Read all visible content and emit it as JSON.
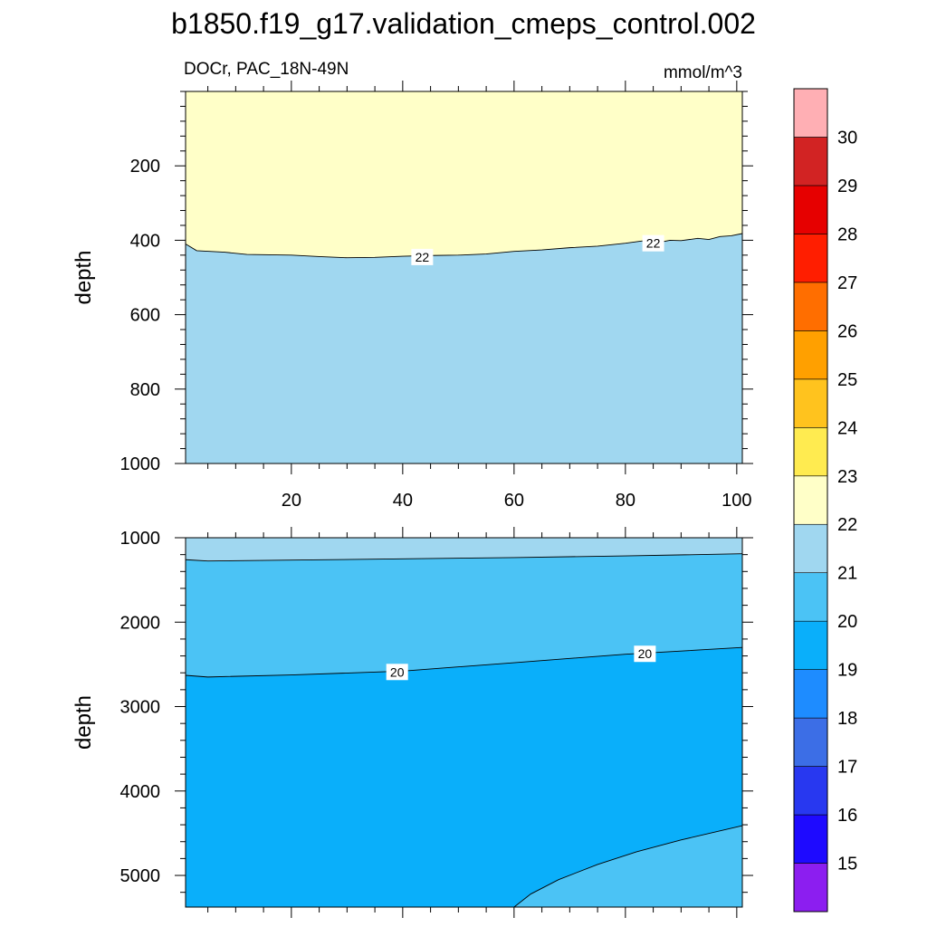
{
  "chart_data": {
    "type": "contour",
    "title": "b1850.f19_g17.validation_cmeps_control.002",
    "variable_label": "DOCr, PAC_18N-49N",
    "units": "mmol/m^3",
    "colorbar": {
      "colors": [
        "#8c1ef0",
        "#1e0aff",
        "#2838f0",
        "#3c6ee6",
        "#1e8cff",
        "#0aaffa",
        "#4bc3f5",
        "#a0d7f0",
        "#ffffc8",
        "#ffeb50",
        "#ffc31e",
        "#ffa000",
        "#ff6e00",
        "#ff1e00",
        "#e60000",
        "#d22323",
        "#ffafb4"
      ],
      "levels": [
        15,
        16,
        17,
        18,
        19,
        20,
        21,
        22,
        23,
        24,
        25,
        26,
        27,
        28,
        29,
        30
      ],
      "level_labels": [
        "15",
        "16",
        "17",
        "18",
        "19",
        "20",
        "21",
        "22",
        "23",
        "24",
        "25",
        "26",
        "27",
        "28",
        "29",
        "30"
      ]
    },
    "panels": [
      {
        "name": "upper",
        "ylabel": "depth",
        "xlim": [
          1,
          101
        ],
        "ylim": [
          0,
          1000
        ],
        "yticks": [
          200,
          400,
          600,
          800,
          1000
        ],
        "ytick_labels": [
          "200",
          "400",
          "600",
          "800",
          "1000"
        ],
        "xticks": [
          20,
          40,
          60,
          80,
          100
        ],
        "xtick_labels": [
          "20",
          "40",
          "60",
          "80",
          "100"
        ],
        "regions": [
          {
            "level": "22-23",
            "color": "#ffffc8"
          },
          {
            "level": "21-22",
            "color": "#a0d7f0"
          }
        ],
        "contours": [
          {
            "level": 22,
            "points": [
              [
                1,
                410
              ],
              [
                3,
                428
              ],
              [
                8,
                432
              ],
              [
                12,
                438
              ],
              [
                20,
                440
              ],
              [
                25,
                444
              ],
              [
                30,
                447
              ],
              [
                35,
                446
              ],
              [
                40,
                443
              ],
              [
                45,
                441
              ],
              [
                50,
                440
              ],
              [
                55,
                437
              ],
              [
                60,
                430
              ],
              [
                65,
                426
              ],
              [
                70,
                420
              ],
              [
                75,
                416
              ],
              [
                80,
                408
              ],
              [
                83,
                402
              ],
              [
                86,
                406
              ],
              [
                88,
                400
              ],
              [
                90,
                401
              ],
              [
                93,
                395
              ],
              [
                95,
                398
              ],
              [
                97,
                390
              ],
              [
                99,
                388
              ],
              [
                101,
                382
              ]
            ],
            "labels": [
              {
                "x": 43.5,
                "y": 445,
                "text": "22"
              },
              {
                "x": 85,
                "y": 408,
                "text": "22"
              }
            ]
          }
        ]
      },
      {
        "name": "lower",
        "ylabel": "depth",
        "xlim": [
          1,
          101
        ],
        "ylim": [
          1000,
          5375
        ],
        "yticks": [
          1000,
          2000,
          3000,
          4000,
          5000
        ],
        "ytick_labels": [
          "1000",
          "2000",
          "3000",
          "4000",
          "5000"
        ],
        "xticks": [
          20,
          40,
          60,
          80,
          100
        ],
        "xtick_labels": [],
        "regions": [
          {
            "level": "21-22",
            "color": "#a0d7f0"
          },
          {
            "level": "20-21",
            "color": "#4bc3f5"
          },
          {
            "level": "19-20",
            "color": "#0aaffa"
          }
        ],
        "contours": [
          {
            "level": 21,
            "points": [
              [
                1,
                1260
              ],
              [
                5,
                1275
              ],
              [
                20,
                1265
              ],
              [
                40,
                1250
              ],
              [
                60,
                1235
              ],
              [
                80,
                1215
              ],
              [
                101,
                1190
              ]
            ],
            "labels": []
          },
          {
            "level": 20,
            "points": [
              [
                1,
                2630
              ],
              [
                5,
                2650
              ],
              [
                20,
                2625
              ],
              [
                40,
                2580
              ],
              [
                60,
                2480
              ],
              [
                80,
                2380
              ],
              [
                101,
                2300
              ]
            ],
            "labels": [
              {
                "x": 39,
                "y": 2590,
                "text": "20"
              },
              {
                "x": 83.5,
                "y": 2375,
                "text": "20"
              }
            ]
          },
          {
            "level": 20,
            "points": [
              [
                60,
                5375
              ],
              [
                63,
                5220
              ],
              [
                68,
                5050
              ],
              [
                75,
                4870
              ],
              [
                82,
                4720
              ],
              [
                90,
                4580
              ],
              [
                101,
                4410
              ]
            ],
            "labels": []
          }
        ]
      }
    ]
  }
}
